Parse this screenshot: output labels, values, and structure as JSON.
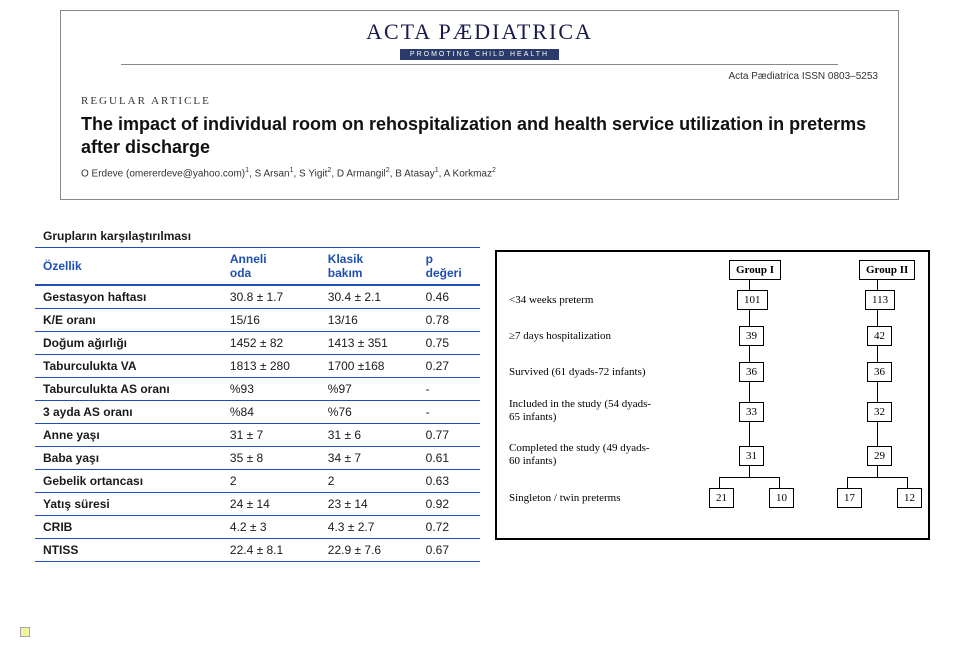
{
  "journal": {
    "logo_title": "ACTA PÆDIATRICA",
    "logo_subtitle": "PROMOTING CHILD HEALTH",
    "issn": "Acta Pædiatrica ISSN 0803–5253",
    "section": "REGULAR ARTICLE",
    "title": "The impact of individual room on rehospitalization and health service utilization in preterms after discharge",
    "authors_prefix": "O Erdeve (omererdeve@yahoo.com)",
    "authors_rest": ", S Arsan",
    "authors_rest2": ", S Yigit",
    "authors_rest3": ", D Armangil",
    "authors_rest4": ", B Atasay",
    "authors_rest5": ", A Korkmaz"
  },
  "comparison": {
    "caption": "Grupların karşılaştırılması",
    "head": {
      "c1": "Özellik",
      "c2": "Anneli oda",
      "c3": "Klasik bakım",
      "c4": "p değeri"
    },
    "rows": [
      {
        "c1": "Gestasyon haftası",
        "c2": "30.8 ± 1.7",
        "c3": "30.4 ± 2.1",
        "c4": "0.46"
      },
      {
        "c1": "K/E oranı",
        "c2": "15/16",
        "c3": "13/16",
        "c4": "0.78"
      },
      {
        "c1": "Doğum ağırlığı",
        "c2": "1452 ± 82",
        "c3": "1413 ± 351",
        "c4": "0.75"
      },
      {
        "c1": "Taburculukta VA",
        "c2": "1813 ± 280",
        "c3": "1700 ±168",
        "c4": "0.27"
      },
      {
        "c1": "Taburculukta AS oranı",
        "c2": "%93",
        "c3": "%97",
        "c4": "-"
      },
      {
        "c1": "3 ayda AS oranı",
        "c2": "%84",
        "c3": "%76",
        "c4": "-"
      },
      {
        "c1": "Anne yaşı",
        "c2": "31 ± 7",
        "c3": "31 ± 6",
        "c4": "0.77"
      },
      {
        "c1": "Baba yaşı",
        "c2": "35 ± 8",
        "c3": "34 ± 7",
        "c4": "0.61"
      },
      {
        "c1": "Gebelik ortancası",
        "c2": "2",
        "c3": "2",
        "c4": "0.63"
      },
      {
        "c1": "Yatış süresi",
        "c2": "24 ± 14",
        "c3": "23 ± 14",
        "c4": "0.92"
      },
      {
        "c1": "CRIB",
        "c2": "4.2 ± 3",
        "c3": "4.3 ± 2.7",
        "c4": "0.72"
      },
      {
        "c1": "NTISS",
        "c2": "22.4 ± 8.1",
        "c3": "22.9 ± 7.6",
        "c4": "0.67"
      }
    ]
  },
  "flow": {
    "group1_label": "Group I",
    "group2_label": "Group II",
    "row_labels": [
      "<34 weeks preterm",
      "≥7 days hospitalization",
      "Survived (61 dyads-72 infants)",
      "Included in the study (54 dyads-65 infants)",
      "Completed the study (49 dyads-60 infants)",
      "Singleton / twin preterms"
    ],
    "g1_vals": [
      "101",
      "39",
      "36",
      "33",
      "31",
      "21",
      "10"
    ],
    "g2_vals": [
      "113",
      "42",
      "36",
      "32",
      "29",
      "17",
      "12"
    ]
  }
}
